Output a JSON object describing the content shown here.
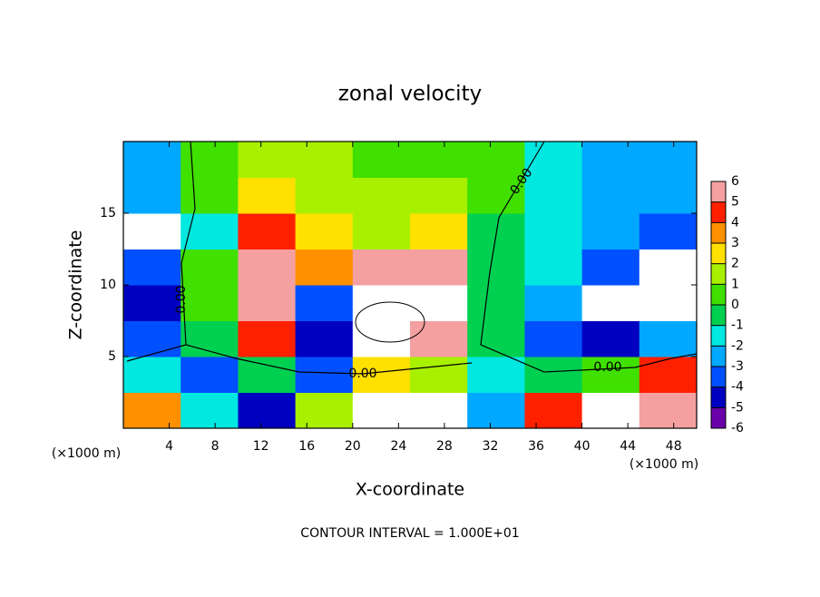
{
  "chart_data": {
    "type": "heatmap",
    "title": "zonal velocity",
    "x_label": "X-coordinate",
    "y_label": "Z-coordinate",
    "x_unit_labels": [
      "(×1000 m)",
      "(×1000 m)"
    ],
    "footer": "CONTOUR INTERVAL = 1.000E+01",
    "contour_labels": [
      "0.00",
      "0.00",
      "0.00",
      "0.00"
    ],
    "xlim": [
      0,
      50
    ],
    "ylim": [
      0,
      20
    ],
    "xticks": [
      4,
      8,
      12,
      16,
      20,
      24,
      28,
      32,
      36,
      40,
      44,
      48
    ],
    "yticks": [
      5,
      10,
      15
    ],
    "x_edges": [
      0,
      5,
      10,
      15,
      20,
      25,
      30,
      35,
      40,
      45,
      50
    ],
    "y_edges": [
      0,
      2.5,
      5,
      7.5,
      10,
      12.5,
      15,
      17.5,
      20
    ],
    "values": [
      [
        3,
        -2,
        -5,
        1,
        -8,
        -8,
        -3,
        4,
        8,
        5
      ],
      [
        -2,
        -4,
        -1,
        -4,
        2,
        1,
        -2,
        -1,
        0,
        4
      ],
      [
        -4,
        -1,
        4,
        -5,
        7,
        5,
        -1,
        -4,
        -5,
        -3
      ],
      [
        -5,
        0,
        5,
        -4,
        8,
        7,
        -1,
        -3,
        -8,
        -8
      ],
      [
        -4,
        0,
        5,
        3,
        5,
        5,
        -1,
        -2,
        -4,
        -8
      ],
      [
        -8,
        -2,
        4,
        2,
        1.5,
        2,
        -1,
        -2,
        -3,
        -4
      ],
      [
        -3,
        0,
        2,
        1,
        1,
        1,
        0,
        -1.5,
        -2.5,
        -3
      ],
      [
        -3,
        0.5,
        1,
        1,
        0.5,
        0.5,
        0,
        -2,
        -2.5,
        -3
      ]
    ],
    "colorbar_ticks": [
      6,
      5,
      4,
      3,
      2,
      1,
      0,
      -1,
      -2,
      -3,
      -4,
      -5,
      -6
    ],
    "colors": [
      "#6a00a8",
      "#0000c0",
      "#0050ff",
      "#00a8ff",
      "#00e8e0",
      "#00d050",
      "#40e000",
      "#a8f000",
      "#ffe000",
      "#ff9000",
      "#ff2000",
      "#f4a0a0"
    ],
    "out_of_range_color": "#ffffff"
  }
}
